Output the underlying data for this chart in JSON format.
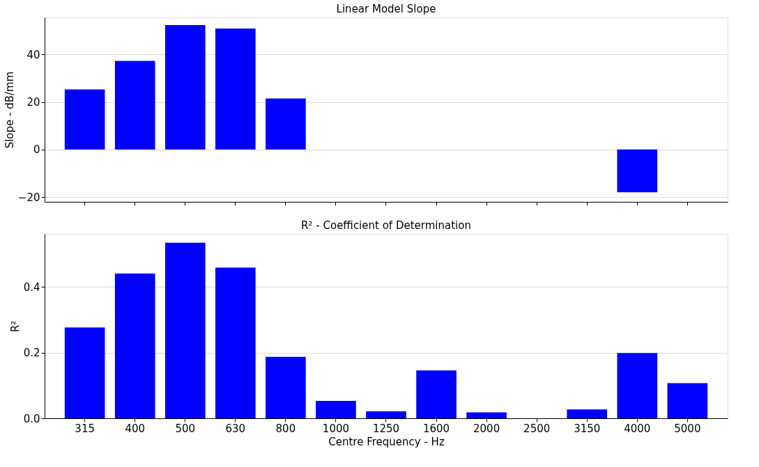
{
  "chart_data": [
    {
      "type": "bar",
      "title": "Linear Model Slope",
      "ylabel": "Slope - dB/mm",
      "categories": [
        "315",
        "400",
        "500",
        "630",
        "800",
        "1000",
        "1250",
        "1600",
        "2000",
        "2500",
        "3150",
        "4000",
        "5000"
      ],
      "values": [
        25.3,
        37.3,
        52.4,
        50.9,
        21.5,
        null,
        null,
        null,
        null,
        null,
        null,
        -18.0,
        null
      ],
      "color": "#0000ff",
      "ylim": [
        -22,
        55.6
      ],
      "yticks": [
        -20,
        0,
        20,
        40
      ],
      "grid": "y",
      "tick_labels": "y"
    },
    {
      "type": "bar",
      "title": "R² - Coefficient of Determination",
      "xlabel": "Centre Frequency - Hz",
      "ylabel": "R²",
      "categories": [
        "315",
        "400",
        "500",
        "630",
        "800",
        "1000",
        "1250",
        "1600",
        "2000",
        "2500",
        "3150",
        "4000",
        "5000"
      ],
      "values": [
        0.277,
        0.441,
        0.535,
        0.459,
        0.187,
        0.053,
        0.021,
        0.146,
        0.018,
        0.0,
        0.027,
        0.199,
        0.107
      ],
      "color": "#0000ff",
      "ylim": [
        0,
        0.562
      ],
      "yticks": [
        {
          "value": 0,
          "label": "0.0"
        },
        0.2,
        0.4
      ],
      "grid": "y"
    }
  ]
}
